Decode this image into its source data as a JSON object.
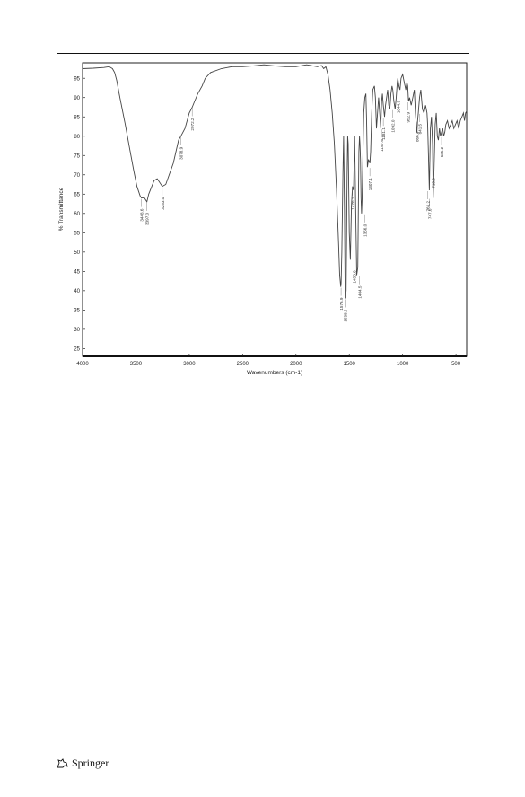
{
  "page": {
    "publisher": "Springer",
    "publisher_logo_icon": "springer-horse-icon"
  },
  "chart_data": {
    "type": "line",
    "title": "",
    "xlabel": "Wavenumbers (cm-1)",
    "ylabel": "% Transmittance",
    "xlim": [
      4000,
      400
    ],
    "ylim": [
      23,
      99
    ],
    "x_ticks": [
      4000,
      3500,
      3000,
      2500,
      2000,
      1500,
      1000,
      500
    ],
    "y_ticks": [
      25,
      30,
      35,
      40,
      45,
      50,
      55,
      60,
      65,
      70,
      75,
      80,
      85,
      90,
      95
    ],
    "grid": false,
    "legend": "none",
    "line_color": "#444444",
    "series": [
      {
        "x": [
          4000,
          3900,
          3800,
          3750,
          3720,
          3700,
          3680,
          3650,
          3600,
          3560,
          3520,
          3490,
          3460,
          3448.6,
          3420,
          3397,
          3380,
          3330,
          3300,
          3253,
          3220,
          3150,
          3100,
          3078.9,
          3040,
          3000,
          2972.2,
          2950,
          2920,
          2880,
          2850,
          2800,
          2700,
          2600,
          2500,
          2400,
          2300,
          2200,
          2100,
          2000,
          1900,
          1800,
          1760,
          1740,
          1720,
          1700,
          1680,
          1660,
          1640,
          1620,
          1600,
          1590,
          1580,
          1576.9,
          1570,
          1560,
          1553,
          1545,
          1538.5,
          1530,
          1520,
          1515,
          1510,
          1500,
          1490,
          1480,
          1470.2,
          1460,
          1450,
          1440,
          1430,
          1420,
          1410,
          1404.5,
          1400,
          1395,
          1390,
          1385,
          1380,
          1372,
          1365,
          1355,
          1345,
          1338,
          1330,
          1320,
          1307.1,
          1300,
          1290,
          1280,
          1265,
          1255,
          1245,
          1235,
          1225,
          1215,
          1205,
          1197.6,
          1190,
          1181.1,
          1170,
          1160,
          1150,
          1140,
          1130,
          1120,
          1110,
          1100,
          1092,
          1082,
          1070,
          1060,
          1050,
          1044.9,
          1035,
          1025,
          1015,
          1000,
          985,
          970,
          960,
          952.9,
          945,
          935,
          920,
          905,
          890,
          880,
          870,
          866.4,
          860,
          853,
          841.5,
          830,
          815,
          800,
          785,
          772,
          766.2,
          760,
          750,
          747.6,
          740,
          730,
          720,
          713.6,
          705,
          695,
          685,
          675,
          665,
          655,
          645,
          635.2,
          625,
          615,
          605,
          595,
          580,
          565,
          550,
          535,
          520,
          505,
          490,
          475,
          460,
          445,
          430,
          420,
          410,
          400
        ],
        "y": [
          97.5,
          97.6,
          97.8,
          98,
          97.5,
          96.5,
          94.5,
          90,
          83,
          77,
          71,
          67,
          64.5,
          64,
          64,
          63,
          65,
          68.5,
          69,
          67,
          67.5,
          73,
          79,
          80,
          82,
          86,
          87.5,
          89,
          91,
          93,
          95,
          96.5,
          97.5,
          98,
          98,
          98.2,
          98.5,
          98.2,
          98,
          98,
          98.5,
          98,
          98.3,
          97.5,
          98,
          96,
          92,
          86,
          78,
          66,
          52,
          44,
          41,
          42,
          50,
          70,
          80,
          60,
          38,
          40,
          70,
          80,
          78,
          55,
          48,
          62,
          67,
          66,
          80,
          60,
          44,
          46,
          76,
          80,
          78,
          74,
          64,
          60,
          64,
          75,
          86,
          90,
          91,
          84,
          72,
          74,
          73,
          76,
          86,
          92,
          93,
          90,
          82,
          86,
          90,
          86,
          82,
          89,
          91,
          88,
          85,
          88,
          90,
          92,
          88,
          87,
          91,
          93,
          92,
          89,
          87,
          90,
          94,
          95,
          93,
          92,
          95,
          96,
          94,
          92,
          94,
          93,
          89,
          90,
          88,
          90,
          92,
          86,
          82,
          81,
          84,
          86,
          90,
          92,
          87,
          86,
          88,
          86,
          83,
          77,
          66,
          70,
          82,
          85,
          78,
          64,
          72,
          83,
          86,
          80,
          79,
          82,
          80,
          81,
          82,
          80,
          81,
          83,
          84,
          82,
          83,
          84,
          82,
          83,
          84,
          82,
          84,
          85,
          86,
          84,
          86,
          86.5
        ]
      }
    ],
    "annotations": [
      {
        "text": "3448.6",
        "x": 3448.6,
        "y": 64
      },
      {
        "text": "3397.0",
        "x": 3397,
        "y": 63
      },
      {
        "text": "3253.0",
        "x": 3253,
        "y": 67
      },
      {
        "text": "3078.9",
        "x": 3078.9,
        "y": 80
      },
      {
        "text": "2972.2",
        "x": 2972.2,
        "y": 87.5
      },
      {
        "text": "1576.9",
        "x": 1576.9,
        "y": 41
      },
      {
        "text": "1538.5",
        "x": 1538.5,
        "y": 38
      },
      {
        "text": "1470.2",
        "x": 1470.2,
        "y": 67
      },
      {
        "text": "1404.5",
        "x": 1404.5,
        "y": 44
      },
      {
        "text": "1453.6",
        "x": 1453.6,
        "y": 48
      },
      {
        "text": "1356.0",
        "x": 1356,
        "y": 60
      },
      {
        "text": "1307.1",
        "x": 1307.1,
        "y": 72
      },
      {
        "text": "1197.6",
        "x": 1197.6,
        "y": 82
      },
      {
        "text": "1181.1",
        "x": 1181.1,
        "y": 85
      },
      {
        "text": "1092.0",
        "x": 1092,
        "y": 87
      },
      {
        "text": "1044.9",
        "x": 1044.9,
        "y": 92
      },
      {
        "text": "952.9",
        "x": 952.9,
        "y": 89
      },
      {
        "text": "866.4",
        "x": 866.4,
        "y": 84
      },
      {
        "text": "841.5",
        "x": 841.5,
        "y": 86
      },
      {
        "text": "747.6",
        "x": 747.6,
        "y": 64
      },
      {
        "text": "766.2",
        "x": 766.2,
        "y": 66
      },
      {
        "text": "713.6",
        "x": 713.6,
        "y": 72
      },
      {
        "text": "635.2",
        "x": 635.2,
        "y": 80
      }
    ]
  }
}
